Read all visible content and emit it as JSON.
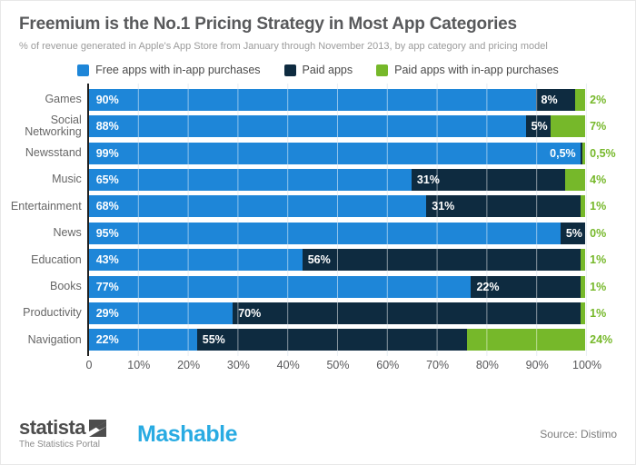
{
  "header": {
    "title": "Freemium is the No.1 Pricing Strategy in Most App Categories",
    "subtitle": "% of revenue generated in Apple's App Store from January through November 2013, by app category and pricing model"
  },
  "colors": {
    "free_blue": "#1e86d8",
    "paid_navy": "#0e2b40",
    "paid_iap_green": "#76b82a",
    "axis_black": "#1f1f1f",
    "gridline": "#d7e1ea",
    "title_gray": "#58595b",
    "mashable_blue": "#29abe2",
    "statista_gray": "#4d4d4d"
  },
  "chart_data": {
    "type": "bar",
    "orientation": "horizontal-stacked",
    "title": "Freemium is the No.1 Pricing Strategy in Most App Categories",
    "subtitle": "% of revenue generated in Apple's App Store from January through November 2013, by app category and pricing model",
    "categories": [
      "Games",
      "Social Networking",
      "Newsstand",
      "Music",
      "Entertainment",
      "News",
      "Education",
      "Books",
      "Productivity",
      "Navigation"
    ],
    "series": [
      {
        "name": "Free apps with in-app purchases",
        "color": "#1e86d8",
        "values": [
          90,
          88,
          99,
          65,
          68,
          95,
          43,
          77,
          29,
          22
        ],
        "labels": [
          "90%",
          "88%",
          "99%",
          "65%",
          "68%",
          "95%",
          "43%",
          "77%",
          "29%",
          "22%"
        ]
      },
      {
        "name": "Paid apps",
        "color": "#0e2b40",
        "values": [
          8,
          5,
          0.5,
          31,
          31,
          5,
          56,
          22,
          70,
          55
        ],
        "labels": [
          "8%",
          "5%",
          "0,5%",
          "31%",
          "31%",
          "5%",
          "56%",
          "22%",
          "70%",
          "55%"
        ]
      },
      {
        "name": "Paid apps with in-app purchases",
        "color": "#76b82a",
        "values": [
          2,
          7,
          0.5,
          4,
          1,
          0,
          1,
          1,
          1,
          24
        ],
        "labels": [
          "2%",
          "7%",
          "0,5%",
          "4%",
          "1%",
          "0%",
          "1%",
          "1%",
          "1%",
          "24%"
        ]
      }
    ],
    "x_ticks": [
      "0",
      "10%",
      "20%",
      "30%",
      "40%",
      "50%",
      "60%",
      "70%",
      "80%",
      "90%",
      "100%"
    ],
    "xlim": [
      0,
      100
    ],
    "grid": true,
    "legend_position": "top"
  },
  "footer": {
    "statista_name": "statista",
    "statista_tagline": "The Statistics Portal",
    "partner_logo": "Mashable",
    "source": "Source: Distimo"
  }
}
